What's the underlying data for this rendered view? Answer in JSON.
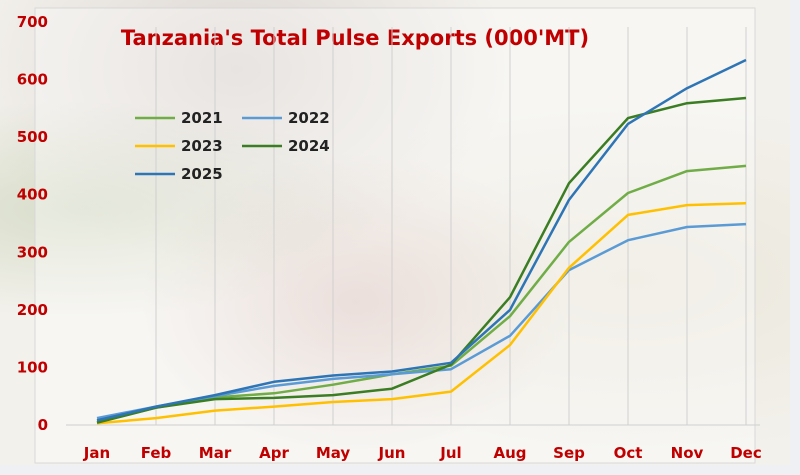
{
  "chart_data": {
    "type": "line",
    "title": "Tanzania's Total Pulse Exports (000'MT)",
    "xlabel": "",
    "ylabel": "",
    "ylim": [
      0,
      700
    ],
    "yticks": [
      0,
      100,
      200,
      300,
      400,
      500,
      600,
      700
    ],
    "grid": "vertical",
    "legend_position": "upper-left-inside",
    "categories": [
      "Jan",
      "Feb",
      "Mar",
      "Apr",
      "May",
      "Jun",
      "Jul",
      "Aug",
      "Sep",
      "Oct",
      "Nov",
      "Dec"
    ],
    "series": [
      {
        "name": "2021",
        "color": "#70ad47",
        "values": [
          5,
          30,
          48,
          55,
          70,
          88,
          103,
          189,
          318,
          403,
          441,
          450
        ]
      },
      {
        "name": "2022",
        "color": "#5b9bd5",
        "values": [
          12,
          32,
          50,
          68,
          80,
          88,
          97,
          155,
          269,
          321,
          344,
          349
        ]
      },
      {
        "name": "2023",
        "color": "#ffc000",
        "values": [
          3,
          12,
          25,
          32,
          40,
          45,
          58,
          139,
          273,
          365,
          382,
          385
        ]
      },
      {
        "name": "2024",
        "color": "#3a7d22",
        "values": [
          4,
          30,
          45,
          47,
          52,
          63,
          105,
          222,
          420,
          533,
          559,
          568
        ]
      },
      {
        "name": "2025",
        "color": "#2e75b6",
        "values": [
          8,
          32,
          52,
          75,
          86,
          93,
          108,
          200,
          391,
          523,
          585,
          634
        ]
      }
    ]
  }
}
